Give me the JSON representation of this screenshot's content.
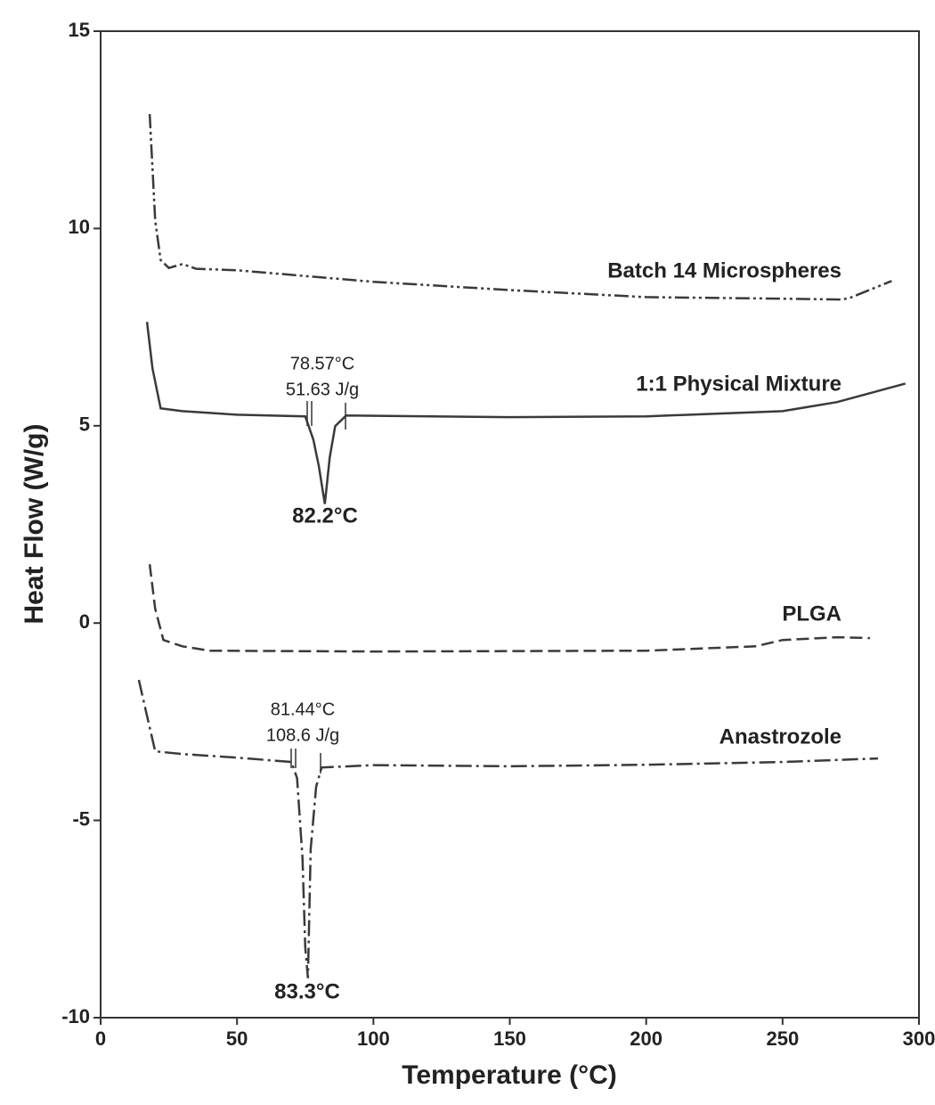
{
  "chart_data": {
    "type": "line",
    "x_label": "Temperature (°C)",
    "y_label": "Heat Flow (W/g)",
    "xlim": [
      0,
      300
    ],
    "xticks": [
      0,
      50,
      100,
      150,
      200,
      250,
      300
    ],
    "ylim": [
      -10,
      15
    ],
    "yticks": [
      -10,
      -5,
      0,
      5,
      10,
      15
    ],
    "grid": false,
    "series": [
      {
        "name": "Batch 14 Microspheres",
        "color": "#3a3a3a",
        "linestyle": "dashdotdot",
        "x": [
          18,
          20,
          22,
          25,
          30,
          35,
          50,
          100,
          150,
          200,
          250,
          272,
          275,
          290
        ],
        "values": [
          12.9,
          10.2,
          9.2,
          9.0,
          9.1,
          8.98,
          8.94,
          8.65,
          8.44,
          8.26,
          8.22,
          8.2,
          8.25,
          8.67
        ]
      },
      {
        "name": "1:1 Physical Mixture",
        "color": "#3a3a3a",
        "linestyle": "solid",
        "x": [
          17,
          19,
          22,
          30,
          50,
          75,
          78,
          80,
          82.2,
          84,
          86,
          90,
          150,
          200,
          250,
          270,
          295
        ],
        "values": [
          7.63,
          6.46,
          5.44,
          5.37,
          5.28,
          5.24,
          4.65,
          3.97,
          3.02,
          4.2,
          4.99,
          5.26,
          5.22,
          5.24,
          5.37,
          5.6,
          6.07
        ]
      },
      {
        "name": "PLGA",
        "color": "#3a3a3a",
        "linestyle": "dashed",
        "x": [
          18,
          20,
          23,
          30,
          40,
          100,
          200,
          240,
          250,
          270,
          282
        ],
        "values": [
          1.49,
          0.36,
          -0.43,
          -0.59,
          -0.7,
          -0.72,
          -0.7,
          -0.59,
          -0.43,
          -0.36,
          -0.38
        ]
      },
      {
        "name": "Anastrozole",
        "color": "#3a3a3a",
        "linestyle": "dashdot",
        "x": [
          14,
          17,
          20,
          30,
          50,
          70,
          72,
          74,
          75,
          76,
          77,
          79,
          81,
          100,
          150,
          200,
          250,
          285
        ],
        "values": [
          -1.44,
          -2.35,
          -3.25,
          -3.32,
          -3.41,
          -3.52,
          -3.93,
          -5.96,
          -8.22,
          -9.0,
          -5.73,
          -4.15,
          -3.66,
          -3.6,
          -3.63,
          -3.59,
          -3.52,
          -3.43
        ]
      }
    ],
    "annotations": [
      "78.57°C",
      "51.63 J/g",
      "82.2°C",
      "81.44°C",
      "108.6 J/g",
      "83.3°C"
    ]
  }
}
